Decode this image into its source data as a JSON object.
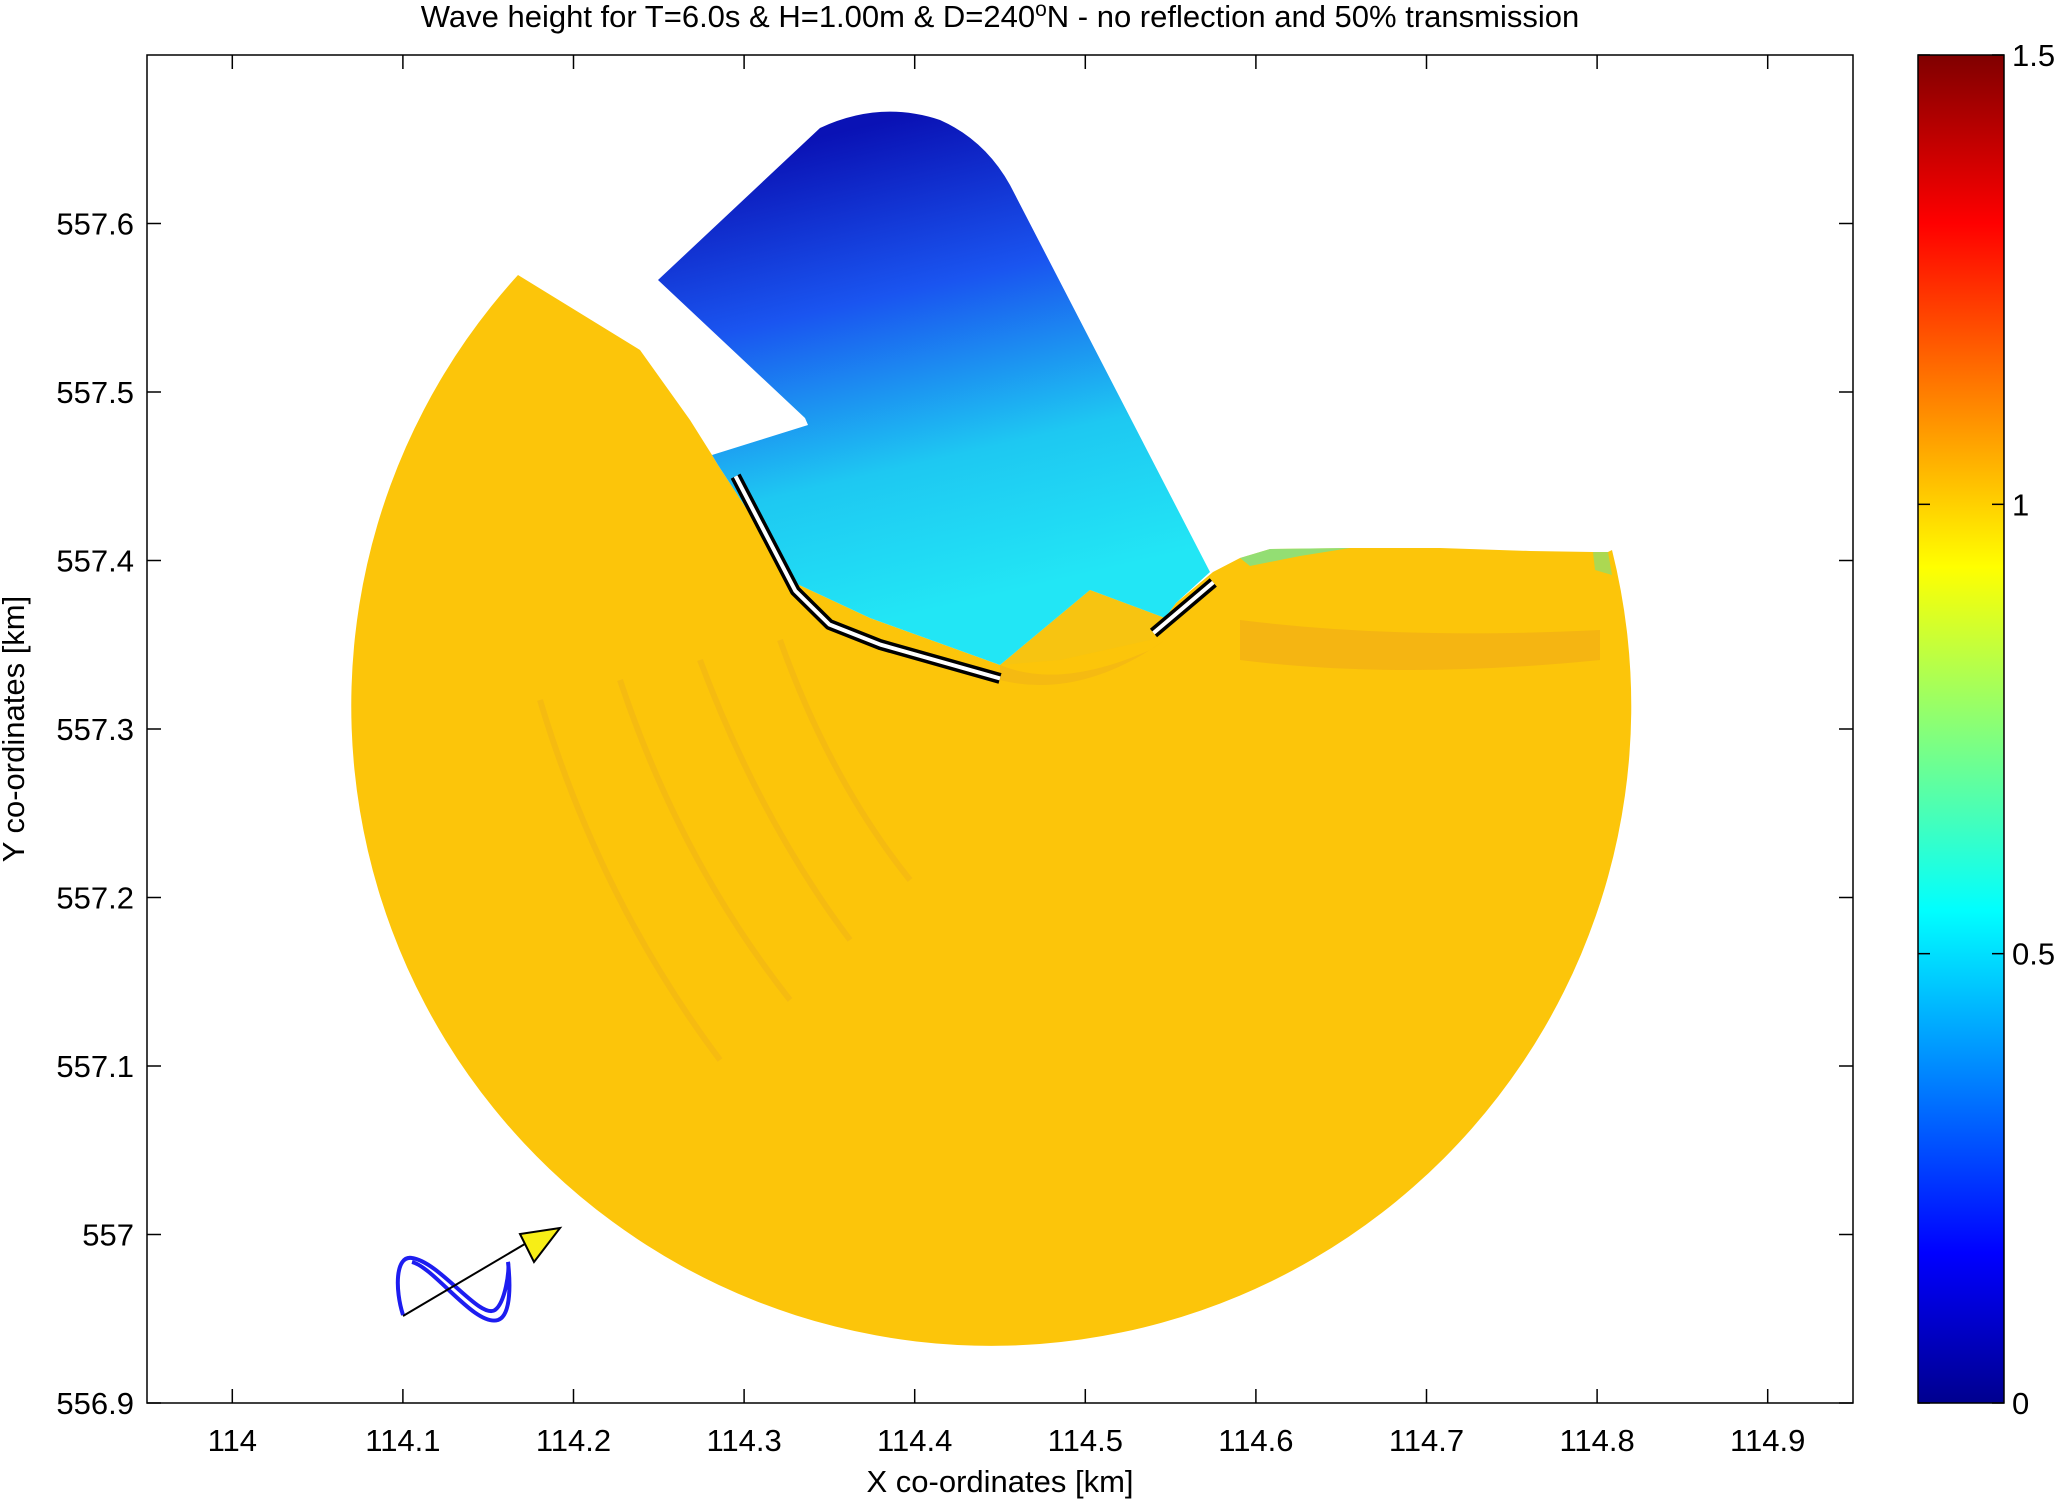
{
  "chart_data": {
    "type": "heatmap",
    "title_parts": [
      "Wave height for T=6.0s & H=1.00m & D=240",
      "o",
      "N - no reflection and 50% transmission"
    ],
    "xlabel": "X co-ordinates [km]",
    "ylabel": "Y co-ordinates [km]",
    "xlim": [
      113.95,
      114.95
    ],
    "ylim": [
      556.9,
      557.7
    ],
    "xticks": [
      "114",
      "114.1",
      "114.2",
      "114.3",
      "114.4",
      "114.5",
      "114.6",
      "114.7",
      "114.8",
      "114.9"
    ],
    "yticks": [
      "556.9",
      "557",
      "557.1",
      "557.2",
      "557.3",
      "557.4",
      "557.5",
      "557.6"
    ],
    "colorbar": {
      "range": [
        0,
        1.5
      ],
      "ticks": [
        "0",
        "0.5",
        "1",
        "1.5"
      ],
      "colormap": "jet"
    },
    "domain_center": [
      114.45,
      557.3
    ],
    "domain_radius_km": 0.37,
    "field_values": {
      "open_sea": 0.97,
      "harbour_entrance": 0.55,
      "inner_basin": 0.1
    },
    "breakwaters": [
      {
        "name": "main",
        "points": [
          [
            114.295,
            557.45
          ],
          [
            114.33,
            557.382
          ],
          [
            114.35,
            557.362
          ],
          [
            114.38,
            557.35
          ],
          [
            114.45,
            557.33
          ]
        ]
      },
      {
        "name": "secondary",
        "points": [
          [
            114.54,
            557.357
          ],
          [
            114.575,
            557.387
          ]
        ]
      }
    ],
    "wave_direction_deg": 240
  }
}
